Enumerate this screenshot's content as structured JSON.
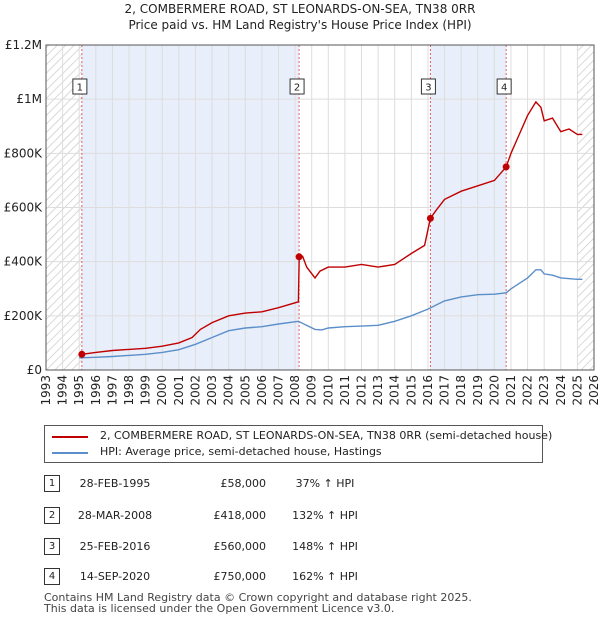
{
  "title_line1": "2, COMBERMERE ROAD, ST LEONARDS-ON-SEA, TN38 0RR",
  "title_line2": "Price paid vs. HM Land Registry's House Price Index (HPI)",
  "chart_data": {
    "type": "line",
    "xlim": [
      1993,
      2026
    ],
    "ylim": [
      0,
      1200000
    ],
    "y_ticks": [
      {
        "value": 0,
        "label": "£0"
      },
      {
        "value": 200000,
        "label": "£200K"
      },
      {
        "value": 400000,
        "label": "£400K"
      },
      {
        "value": 600000,
        "label": "£600K"
      },
      {
        "value": 800000,
        "label": "£800K"
      },
      {
        "value": 1000000,
        "label": "£1M"
      },
      {
        "value": 1200000,
        "label": "£1.2M"
      }
    ],
    "x_ticks": [
      "1993",
      "1994",
      "1995",
      "1996",
      "1997",
      "1998",
      "1999",
      "2000",
      "2001",
      "2002",
      "2003",
      "2004",
      "2005",
      "2006",
      "2007",
      "2008",
      "2009",
      "2010",
      "2011",
      "2012",
      "2013",
      "2014",
      "2015",
      "2016",
      "2017",
      "2018",
      "2019",
      "2020",
      "2021",
      "2022",
      "2023",
      "2024",
      "2025",
      "2026"
    ],
    "hatched_before": 1995.16,
    "hatched_after": 2025.0,
    "colors": {
      "property": "#c00000",
      "hpi": "#5b8fc9",
      "vline": "#e06060",
      "shade": "#e8eefa",
      "hatch": "#cccccc",
      "grid": "#dddddd"
    },
    "series": [
      {
        "name": "2, COMBERMERE ROAD, ST LEONARDS-ON-SEA, TN38 0RR (semi-detached house)",
        "color": "#c00000",
        "x": [
          1995.16,
          1996,
          1997,
          1998,
          1999,
          2000,
          2001,
          2001.8,
          2002.3,
          2003,
          2004,
          2005,
          2006,
          2007,
          2008.2,
          2008.25,
          2008.45,
          2008.7,
          2009.2,
          2009.5,
          2010,
          2011,
          2012,
          2013,
          2014,
          2015,
          2015.8,
          2016.15,
          2016.5,
          2017,
          2018,
          2019,
          2020,
          2020.71,
          2021,
          2021.5,
          2022,
          2022.5,
          2022.8,
          2023,
          2023.5,
          2024,
          2024.5,
          2025,
          2025.3
        ],
        "y": [
          58000,
          65000,
          72000,
          76000,
          80000,
          88000,
          100000,
          120000,
          150000,
          175000,
          200000,
          210000,
          215000,
          230000,
          252000,
          418000,
          420000,
          380000,
          340000,
          365000,
          380000,
          380000,
          390000,
          380000,
          390000,
          430000,
          460000,
          560000,
          590000,
          630000,
          660000,
          680000,
          700000,
          750000,
          800000,
          870000,
          940000,
          990000,
          970000,
          920000,
          930000,
          880000,
          890000,
          870000,
          870000
        ]
      },
      {
        "name": "HPI: Average price, semi-detached house, Hastings",
        "color": "#5b8fc9",
        "x": [
          1995,
          1996,
          1997,
          1998,
          1999,
          2000,
          2001,
          2002,
          2003,
          2004,
          2005,
          2006,
          2007,
          2008.2,
          2009.2,
          2009.6,
          2010,
          2011,
          2012,
          2013,
          2014,
          2015,
          2016,
          2017,
          2018,
          2019,
          2020,
          2020.71,
          2021,
          2022,
          2022.5,
          2022.8,
          2023,
          2023.5,
          2024,
          2025,
          2025.3
        ],
        "y": [
          45000,
          47000,
          50000,
          54000,
          58000,
          65000,
          75000,
          95000,
          120000,
          145000,
          155000,
          160000,
          170000,
          180000,
          150000,
          148000,
          155000,
          160000,
          162000,
          165000,
          180000,
          200000,
          225000,
          255000,
          270000,
          278000,
          280000,
          285000,
          300000,
          340000,
          370000,
          370000,
          355000,
          350000,
          340000,
          335000,
          335000
        ]
      }
    ],
    "sales": [
      {
        "id": "1",
        "x": 1995.16,
        "price": 58000
      },
      {
        "id": "2",
        "x": 2008.24,
        "price": 418000
      },
      {
        "id": "3",
        "x": 2016.15,
        "price": 560000
      },
      {
        "id": "4",
        "x": 2020.71,
        "price": 750000
      }
    ]
  },
  "legend": {
    "property_label": "2, COMBERMERE ROAD, ST LEONARDS-ON-SEA, TN38 0RR (semi-detached house)",
    "hpi_label": "HPI: Average price, semi-detached house, Hastings"
  },
  "table": [
    {
      "id": "1",
      "date": "28-FEB-1995",
      "price": "£58,000",
      "hpi": "37% ↑ HPI"
    },
    {
      "id": "2",
      "date": "28-MAR-2008",
      "price": "£418,000",
      "hpi": "132% ↑ HPI"
    },
    {
      "id": "3",
      "date": "25-FEB-2016",
      "price": "£560,000",
      "hpi": "148% ↑ HPI"
    },
    {
      "id": "4",
      "date": "14-SEP-2020",
      "price": "£750,000",
      "hpi": "162% ↑ HPI"
    }
  ],
  "footer_line1": "Contains HM Land Registry data © Crown copyright and database right 2025.",
  "footer_line2": "This data is licensed under the Open Government Licence v3.0."
}
